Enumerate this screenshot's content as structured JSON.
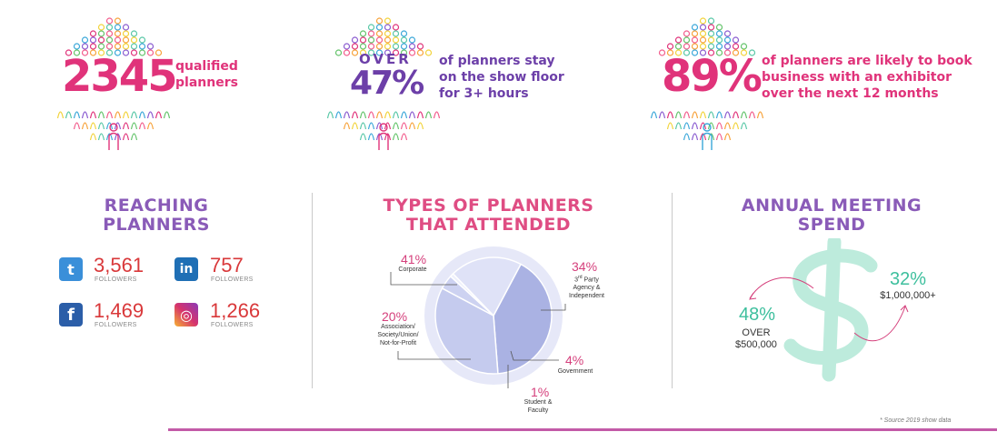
{
  "stats": [
    {
      "number": "2345",
      "over": "",
      "desc": [
        "qualified",
        "planners"
      ],
      "desc_color": "#e0337a"
    },
    {
      "number": "47%",
      "over": "OVER",
      "desc": [
        "of planners stay",
        "on the show floor",
        "for 3+ hours"
      ],
      "desc_color": "#6c3fa8"
    },
    {
      "number": "89%",
      "over": "",
      "desc": [
        "of planners are likely to book",
        "business with an exhibitor",
        "over the next 12 months"
      ],
      "desc_color": "#e0337a"
    }
  ],
  "sections": {
    "reaching": {
      "title": [
        "REACHING",
        "PLANNERS"
      ],
      "color": "#8a5bb8"
    },
    "types": {
      "title": [
        "TYPES OF PLANNERS",
        "THAT ATTENDED"
      ],
      "color": "#df4d83"
    },
    "spend": {
      "title": [
        "ANNUAL MEETING",
        "SPEND"
      ],
      "color": "#8a5bb8"
    }
  },
  "social": [
    {
      "icon": "twitter-icon",
      "glyph": "t",
      "color": "#3a8fd9",
      "value": "3,561",
      "label": "FOLLOWERS"
    },
    {
      "icon": "linkedin-icon",
      "glyph": "in",
      "color": "#1f6fb5",
      "value": "757",
      "label": "FOLLOWERS"
    },
    {
      "icon": "facebook-icon",
      "glyph": "f",
      "color": "#2b5ea8",
      "value": "1,469",
      "label": "FOLLOWERS"
    },
    {
      "icon": "instagram-icon",
      "glyph": "◎",
      "color": "#d6336c",
      "value": "1,266",
      "label": "FOLLOWERS"
    }
  ],
  "chart_data": [
    {
      "type": "pie",
      "slices": [
        {
          "label": "Corporate",
          "value": 41,
          "pct_text": "41%",
          "color": "#aab2e3"
        },
        {
          "label": "3rd Party Agency & Independent",
          "value": 34,
          "pct_text": "34%",
          "color": "#c5cbee"
        },
        {
          "label": "Government",
          "value": 4,
          "pct_text": "4%",
          "color": "#cdd2f1"
        },
        {
          "label": "Student & Faculty",
          "value": 1,
          "pct_text": "1%",
          "color": "#eef0fb"
        },
        {
          "label": "Association/ Society/Union/ Not-for-Profit",
          "value": 20,
          "pct_text": "20%",
          "color": "#dfe2f7"
        }
      ],
      "ring_color": "#e6e8f8"
    },
    {
      "type": "table",
      "items": [
        {
          "value": 48,
          "pct_text": "48%",
          "prefix": "OVER",
          "amount": "$500,000"
        },
        {
          "value": 32,
          "pct_text": "32%",
          "prefix": "",
          "amount": "$1,000,000+"
        }
      ],
      "colors": {
        "pct": "#3dbf9d",
        "dollar": "#bdebdc",
        "arrow": "#d5407c"
      }
    }
  ],
  "footnote": "* Source 2019 show data",
  "colors": {
    "pink": "#e0337a",
    "purple": "#6c3fa8",
    "divider": "#c9c9c9",
    "bar": "#c35aa8"
  }
}
